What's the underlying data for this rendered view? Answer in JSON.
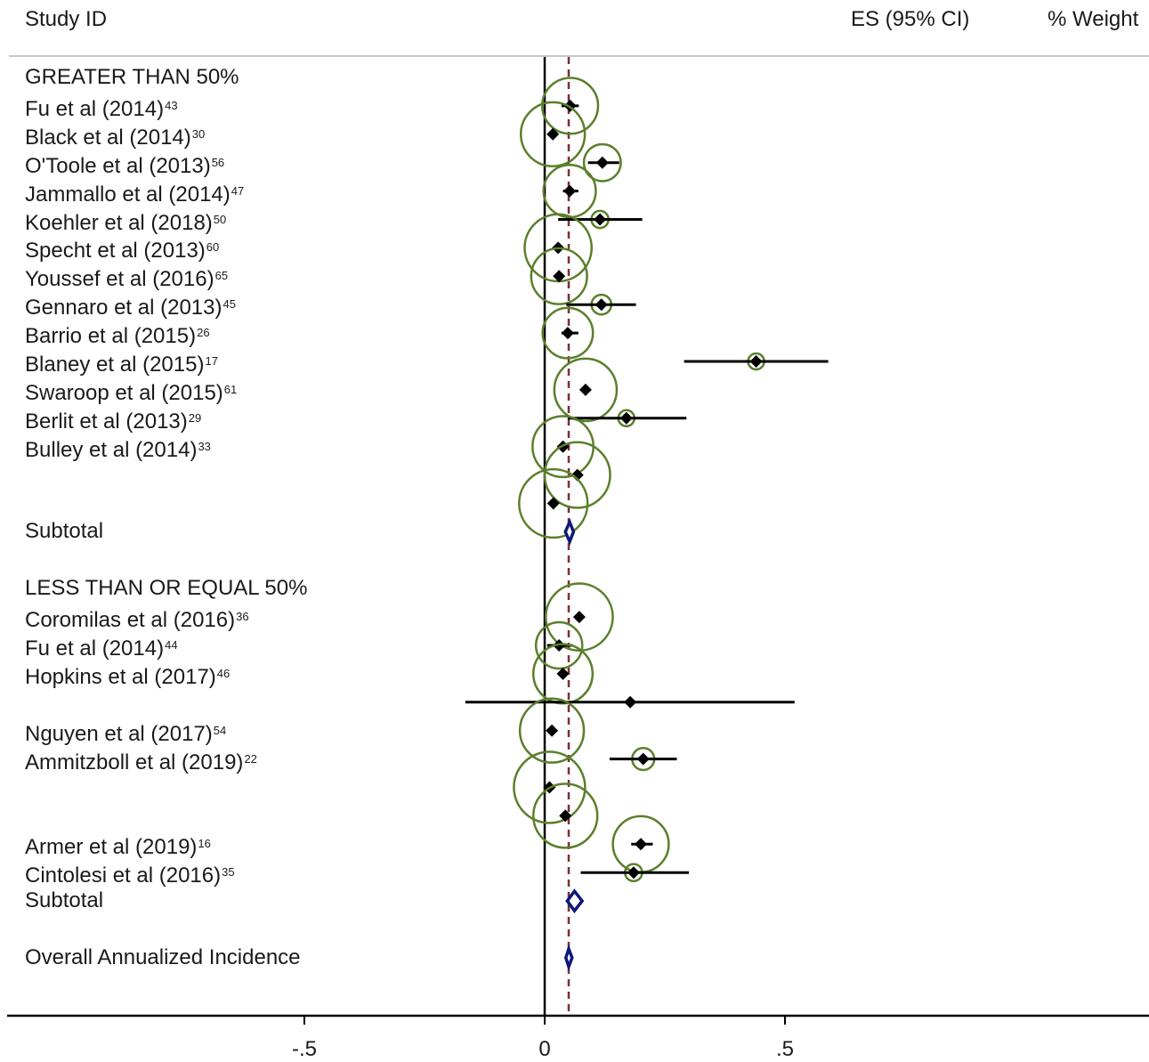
{
  "header": {
    "study_id": "Study ID",
    "es_ci": "ES (95% CI)",
    "weight": "% Weight"
  },
  "chart_data": {
    "type": "forest",
    "xticks": [
      {
        "value": -0.5,
        "label": "-.5"
      },
      {
        "value": 0,
        "label": "0"
      },
      {
        "value": 0.5,
        "label": ".5"
      }
    ],
    "xlim": [
      -1.12,
      1.26
    ],
    "overall_effect_line": 0.05,
    "colors": {
      "marker": "#000000",
      "weight_circle": "#5b7f2b",
      "diamond": "#0d1878",
      "reference_line": "#7a2f38"
    },
    "rows": [
      {
        "kind": "group",
        "label": "GREATER THAN 50%"
      },
      {
        "kind": "study",
        "label": "Fu et al (2014)",
        "ref": "43",
        "es": 0.053,
        "lo": 0.035,
        "hi": 0.071,
        "weight": 1.6
      },
      {
        "kind": "study",
        "label": "Black et al (2014)",
        "ref": "30",
        "es": 0.017,
        "lo": 0.011,
        "hi": 0.023,
        "weight": 2.1
      },
      {
        "kind": "study",
        "label": "O'Toole et al (2013)",
        "ref": "56",
        "es": 0.12,
        "lo": 0.09,
        "hi": 0.155,
        "weight": 0.7
      },
      {
        "kind": "study",
        "label": "Jammallo et al (2014)",
        "ref": "47",
        "es": 0.052,
        "lo": 0.038,
        "hi": 0.07,
        "weight": 1.4
      },
      {
        "kind": "study",
        "label": "Koehler et al (2018)",
        "ref": "50",
        "es": 0.115,
        "lo": 0.028,
        "hi": 0.203,
        "weight": 0.15
      },
      {
        "kind": "study",
        "label": "Specht et al (2013)",
        "ref": "60",
        "es": 0.028,
        "lo": 0.022,
        "hi": 0.034,
        "weight": 2.3
      },
      {
        "kind": "study",
        "label": "Youssef et al (2016)",
        "ref": "65",
        "es": 0.03,
        "lo": 0.022,
        "hi": 0.038,
        "weight": 1.6
      },
      {
        "kind": "study",
        "label": "Gennaro et al (2013)",
        "ref": "45",
        "es": 0.118,
        "lo": 0.045,
        "hi": 0.19,
        "weight": 0.2
      },
      {
        "kind": "study",
        "label": "Barrio et al (2015)",
        "ref": "26",
        "es": 0.048,
        "lo": 0.035,
        "hi": 0.07,
        "weight": 1.3
      },
      {
        "kind": "study",
        "label": "Blaney et al (2015)",
        "ref": "17",
        "es": 0.44,
        "lo": 0.29,
        "hi": 0.59,
        "weight": 0.05
      },
      {
        "kind": "study",
        "label": "Swaroop et al (2015)",
        "ref": "61",
        "es": 0.085,
        "lo": 0.078,
        "hi": 0.092,
        "weight": 2.0
      },
      {
        "kind": "study",
        "label": "Berlit et al (2013)",
        "ref": "29",
        "es": 0.17,
        "lo": 0.048,
        "hi": 0.295,
        "weight": 0.1
      },
      {
        "kind": "study",
        "label": "Bulley et al (2014)",
        "ref": "33",
        "es": 0.038,
        "lo": 0.032,
        "hi": 0.044,
        "weight": 1.9
      },
      {
        "kind": "study",
        "label": "",
        "ref": "",
        "es": 0.068,
        "lo": 0.062,
        "hi": 0.074,
        "weight": 2.2
      },
      {
        "kind": "study",
        "label": "",
        "ref": "",
        "es": 0.018,
        "lo": 0.013,
        "hi": 0.023,
        "weight": 2.4
      },
      {
        "kind": "subtotal",
        "label": "Subtotal",
        "es": 0.052,
        "lo": 0.043,
        "hi": 0.06
      },
      {
        "kind": "blank",
        "label": ""
      },
      {
        "kind": "group",
        "label": "LESS THAN OR EQUAL 50%"
      },
      {
        "kind": "study",
        "label": "Coromilas et al (2016)",
        "ref": "36",
        "es": 0.072,
        "lo": 0.066,
        "hi": 0.078,
        "weight": 2.3
      },
      {
        "kind": "study",
        "label": "Fu et al (2014)",
        "ref": "44",
        "es": 0.03,
        "lo": 0.005,
        "hi": 0.058,
        "weight": 1.1
      },
      {
        "kind": "study",
        "label": "Hopkins et al (2017)",
        "ref": "46",
        "es": 0.038,
        "lo": 0.031,
        "hi": 0.045,
        "weight": 1.8
      },
      {
        "kind": "study",
        "label": "",
        "ref": "",
        "es": 0.178,
        "lo": -0.165,
        "hi": 0.52,
        "weight": 0.0
      },
      {
        "kind": "study",
        "label": "Nguyen et al (2017)",
        "ref": "54",
        "es": 0.015,
        "lo": 0.01,
        "hi": 0.02,
        "weight": 2.1
      },
      {
        "kind": "study",
        "label": "Ammitzboll et al (2019)",
        "ref": "22",
        "es": 0.205,
        "lo": 0.135,
        "hi": 0.275,
        "weight": 0.25
      },
      {
        "kind": "study",
        "label": "",
        "ref": "",
        "es": 0.01,
        "lo": 0.006,
        "hi": 0.014,
        "weight": 2.6
      },
      {
        "kind": "study",
        "label": "",
        "ref": "",
        "es": 0.043,
        "lo": 0.036,
        "hi": 0.05,
        "weight": 2.1
      },
      {
        "kind": "study",
        "label": "Armer et al (2019)",
        "ref": "16",
        "es": 0.2,
        "lo": 0.18,
        "hi": 0.225,
        "weight": 1.6
      },
      {
        "kind": "study",
        "label": "Cintolesi et al (2016)",
        "ref": "35",
        "es": 0.185,
        "lo": 0.075,
        "hi": 0.3,
        "weight": 0.15
      },
      {
        "kind": "subtotal",
        "label": "Subtotal",
        "es": 0.062,
        "lo": 0.047,
        "hi": 0.078
      },
      {
        "kind": "blank",
        "label": ""
      },
      {
        "kind": "overall",
        "label": "Overall Annualized Incidence",
        "es": 0.05,
        "lo": 0.044,
        "hi": 0.057
      }
    ]
  }
}
